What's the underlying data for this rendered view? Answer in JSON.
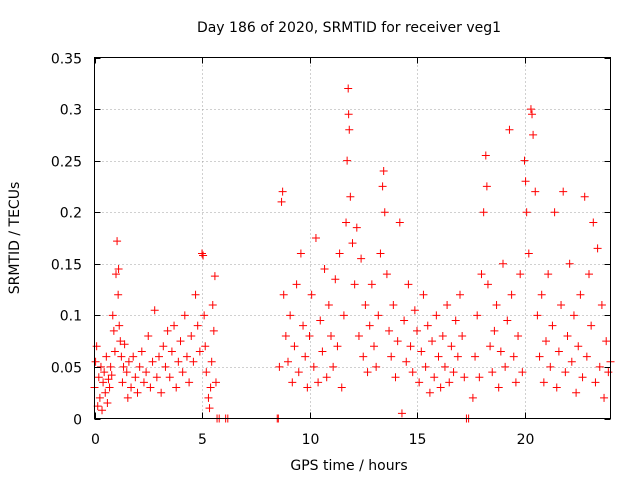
{
  "chart_data": {
    "type": "scatter",
    "title": "Day 186 of 2020, SRMTID for receiver veg1",
    "xlabel": "GPS time / hours",
    "ylabel": "SRMTID / TECUs",
    "xlim": [
      0,
      24
    ],
    "ylim": [
      0,
      0.35
    ],
    "xticks": [
      0,
      5,
      10,
      15,
      20
    ],
    "xtick_labels": [
      "0",
      "5",
      "10",
      "15",
      "20"
    ],
    "yticks": [
      0,
      0.05,
      0.1,
      0.15,
      0.2,
      0.25,
      0.3,
      0.35
    ],
    "ytick_labels": [
      "0",
      "0.05",
      "0.1",
      "0.15",
      "0.2",
      "0.25",
      "0.3",
      "0.35"
    ],
    "grid": true,
    "marker": "plus",
    "color": "#ff0000",
    "series": [
      {
        "name": "SRMTID",
        "points": [
          [
            0.0,
            0.03
          ],
          [
            0.05,
            0.055
          ],
          [
            0.1,
            0.07
          ],
          [
            0.15,
            0.012
          ],
          [
            0.2,
            0.04
          ],
          [
            0.25,
            0.02
          ],
          [
            0.3,
            0.05
          ],
          [
            0.35,
            0.008
          ],
          [
            0.4,
            0.035
          ],
          [
            0.45,
            0.045
          ],
          [
            0.5,
            0.025
          ],
          [
            0.55,
            0.06
          ],
          [
            0.6,
            0.015
          ],
          [
            0.65,
            0.038
          ],
          [
            0.7,
            0.03
          ],
          [
            0.75,
            0.05
          ],
          [
            0.8,
            0.042
          ],
          [
            0.85,
            0.1
          ],
          [
            0.9,
            0.085
          ],
          [
            0.95,
            0.065
          ],
          [
            1.0,
            0.14
          ],
          [
            1.05,
            0.172
          ],
          [
            1.1,
            0.12
          ],
          [
            1.12,
            0.145
          ],
          [
            1.15,
            0.09
          ],
          [
            1.2,
            0.075
          ],
          [
            1.25,
            0.06
          ],
          [
            1.3,
            0.035
          ],
          [
            1.35,
            0.05
          ],
          [
            1.4,
            0.072
          ],
          [
            1.5,
            0.045
          ],
          [
            1.55,
            0.02
          ],
          [
            1.6,
            0.055
          ],
          [
            1.7,
            0.03
          ],
          [
            1.8,
            0.06
          ],
          [
            1.9,
            0.04
          ],
          [
            2.0,
            0.025
          ],
          [
            2.1,
            0.05
          ],
          [
            2.2,
            0.065
          ],
          [
            2.3,
            0.035
          ],
          [
            2.4,
            0.045
          ],
          [
            2.5,
            0.08
          ],
          [
            2.6,
            0.03
          ],
          [
            2.7,
            0.055
          ],
          [
            2.8,
            0.105
          ],
          [
            2.9,
            0.04
          ],
          [
            3.0,
            0.06
          ],
          [
            3.1,
            0.025
          ],
          [
            3.2,
            0.07
          ],
          [
            3.3,
            0.05
          ],
          [
            3.4,
            0.085
          ],
          [
            3.5,
            0.04
          ],
          [
            3.6,
            0.065
          ],
          [
            3.7,
            0.09
          ],
          [
            3.8,
            0.03
          ],
          [
            3.9,
            0.055
          ],
          [
            4.0,
            0.075
          ],
          [
            4.1,
            0.045
          ],
          [
            4.2,
            0.1
          ],
          [
            4.3,
            0.06
          ],
          [
            4.4,
            0.035
          ],
          [
            4.5,
            0.08
          ],
          [
            4.6,
            0.055
          ],
          [
            4.7,
            0.12
          ],
          [
            4.8,
            0.09
          ],
          [
            4.9,
            0.065
          ],
          [
            5.0,
            0.16
          ],
          [
            5.05,
            0.158
          ],
          [
            5.1,
            0.1
          ],
          [
            5.15,
            0.07
          ],
          [
            5.2,
            0.045
          ],
          [
            5.3,
            0.02
          ],
          [
            5.35,
            0.01
          ],
          [
            5.4,
            0.03
          ],
          [
            5.45,
            0.055
          ],
          [
            5.5,
            0.11
          ],
          [
            5.55,
            0.085
          ],
          [
            5.6,
            0.138
          ],
          [
            5.65,
            0.035
          ],
          [
            5.7,
            0.0
          ],
          [
            5.8,
            0.0
          ],
          [
            6.1,
            0.0
          ],
          [
            6.2,
            0.0
          ],
          [
            8.5,
            0.0
          ],
          [
            8.55,
            0.0
          ],
          [
            8.6,
            0.05
          ],
          [
            8.7,
            0.21
          ],
          [
            8.75,
            0.22
          ],
          [
            8.8,
            0.12
          ],
          [
            8.9,
            0.08
          ],
          [
            9.0,
            0.055
          ],
          [
            9.1,
            0.1
          ],
          [
            9.2,
            0.035
          ],
          [
            9.3,
            0.07
          ],
          [
            9.4,
            0.13
          ],
          [
            9.5,
            0.045
          ],
          [
            9.6,
            0.16
          ],
          [
            9.7,
            0.09
          ],
          [
            9.8,
            0.06
          ],
          [
            9.9,
            0.03
          ],
          [
            10.0,
            0.08
          ],
          [
            10.1,
            0.12
          ],
          [
            10.2,
            0.05
          ],
          [
            10.3,
            0.175
          ],
          [
            10.4,
            0.035
          ],
          [
            10.5,
            0.095
          ],
          [
            10.6,
            0.065
          ],
          [
            10.7,
            0.145
          ],
          [
            10.8,
            0.04
          ],
          [
            10.9,
            0.11
          ],
          [
            11.0,
            0.08
          ],
          [
            11.1,
            0.05
          ],
          [
            11.2,
            0.135
          ],
          [
            11.3,
            0.07
          ],
          [
            11.4,
            0.16
          ],
          [
            11.5,
            0.03
          ],
          [
            11.6,
            0.1
          ],
          [
            11.7,
            0.19
          ],
          [
            11.75,
            0.25
          ],
          [
            11.8,
            0.32
          ],
          [
            11.82,
            0.295
          ],
          [
            11.85,
            0.28
          ],
          [
            11.9,
            0.215
          ],
          [
            12.0,
            0.17
          ],
          [
            12.1,
            0.13
          ],
          [
            12.2,
            0.185
          ],
          [
            12.3,
            0.08
          ],
          [
            12.4,
            0.155
          ],
          [
            12.5,
            0.06
          ],
          [
            12.6,
            0.11
          ],
          [
            12.7,
            0.045
          ],
          [
            12.8,
            0.09
          ],
          [
            12.9,
            0.13
          ],
          [
            13.0,
            0.07
          ],
          [
            13.1,
            0.05
          ],
          [
            13.2,
            0.1
          ],
          [
            13.3,
            0.16
          ],
          [
            13.4,
            0.225
          ],
          [
            13.45,
            0.24
          ],
          [
            13.5,
            0.2
          ],
          [
            13.6,
            0.14
          ],
          [
            13.7,
            0.085
          ],
          [
            13.8,
            0.06
          ],
          [
            13.9,
            0.11
          ],
          [
            14.0,
            0.04
          ],
          [
            14.1,
            0.075
          ],
          [
            14.2,
            0.19
          ],
          [
            14.3,
            0.005
          ],
          [
            14.4,
            0.095
          ],
          [
            14.5,
            0.055
          ],
          [
            14.6,
            0.13
          ],
          [
            14.7,
            0.07
          ],
          [
            14.8,
            0.045
          ],
          [
            14.9,
            0.105
          ],
          [
            15.0,
            0.085
          ],
          [
            15.1,
            0.035
          ],
          [
            15.2,
            0.065
          ],
          [
            15.3,
            0.12
          ],
          [
            15.4,
            0.05
          ],
          [
            15.5,
            0.09
          ],
          [
            15.6,
            0.025
          ],
          [
            15.7,
            0.075
          ],
          [
            15.8,
            0.04
          ],
          [
            15.9,
            0.1
          ],
          [
            16.0,
            0.06
          ],
          [
            16.1,
            0.03
          ],
          [
            16.2,
            0.08
          ],
          [
            16.3,
            0.05
          ],
          [
            16.4,
            0.11
          ],
          [
            16.5,
            0.035
          ],
          [
            16.6,
            0.07
          ],
          [
            16.7,
            0.045
          ],
          [
            16.8,
            0.095
          ],
          [
            16.9,
            0.06
          ],
          [
            17.0,
            0.12
          ],
          [
            17.1,
            0.08
          ],
          [
            17.2,
            0.04
          ],
          [
            17.3,
            0.0
          ],
          [
            17.4,
            0.0
          ],
          [
            17.6,
            0.02
          ],
          [
            17.7,
            0.06
          ],
          [
            17.8,
            0.1
          ],
          [
            17.9,
            0.04
          ],
          [
            18.0,
            0.14
          ],
          [
            18.1,
            0.2
          ],
          [
            18.2,
            0.255
          ],
          [
            18.25,
            0.225
          ],
          [
            18.3,
            0.13
          ],
          [
            18.4,
            0.07
          ],
          [
            18.5,
            0.045
          ],
          [
            18.6,
            0.085
          ],
          [
            18.7,
            0.11
          ],
          [
            18.8,
            0.03
          ],
          [
            18.9,
            0.065
          ],
          [
            19.0,
            0.15
          ],
          [
            19.1,
            0.05
          ],
          [
            19.2,
            0.095
          ],
          [
            19.3,
            0.28
          ],
          [
            19.4,
            0.12
          ],
          [
            19.5,
            0.06
          ],
          [
            19.6,
            0.035
          ],
          [
            19.7,
            0.08
          ],
          [
            19.8,
            0.14
          ],
          [
            19.9,
            0.045
          ],
          [
            20.0,
            0.25
          ],
          [
            20.05,
            0.23
          ],
          [
            20.1,
            0.2
          ],
          [
            20.2,
            0.16
          ],
          [
            20.3,
            0.3
          ],
          [
            20.35,
            0.295
          ],
          [
            20.4,
            0.275
          ],
          [
            20.5,
            0.22
          ],
          [
            20.6,
            0.1
          ],
          [
            20.7,
            0.06
          ],
          [
            20.8,
            0.12
          ],
          [
            20.9,
            0.035
          ],
          [
            21.0,
            0.075
          ],
          [
            21.1,
            0.14
          ],
          [
            21.2,
            0.05
          ],
          [
            21.3,
            0.09
          ],
          [
            21.4,
            0.2
          ],
          [
            21.5,
            0.03
          ],
          [
            21.6,
            0.065
          ],
          [
            21.7,
            0.11
          ],
          [
            21.8,
            0.22
          ],
          [
            21.9,
            0.045
          ],
          [
            22.0,
            0.08
          ],
          [
            22.1,
            0.15
          ],
          [
            22.2,
            0.055
          ],
          [
            22.3,
            0.1
          ],
          [
            22.4,
            0.025
          ],
          [
            22.5,
            0.07
          ],
          [
            22.6,
            0.12
          ],
          [
            22.7,
            0.04
          ],
          [
            22.8,
            0.215
          ],
          [
            22.9,
            0.06
          ],
          [
            23.0,
            0.14
          ],
          [
            23.1,
            0.09
          ],
          [
            23.2,
            0.19
          ],
          [
            23.3,
            0.035
          ],
          [
            23.4,
            0.165
          ],
          [
            23.5,
            0.05
          ],
          [
            23.6,
            0.11
          ],
          [
            23.7,
            0.02
          ],
          [
            23.8,
            0.075
          ],
          [
            23.9,
            0.045
          ],
          [
            24.0,
            0.055
          ]
        ]
      }
    ]
  }
}
